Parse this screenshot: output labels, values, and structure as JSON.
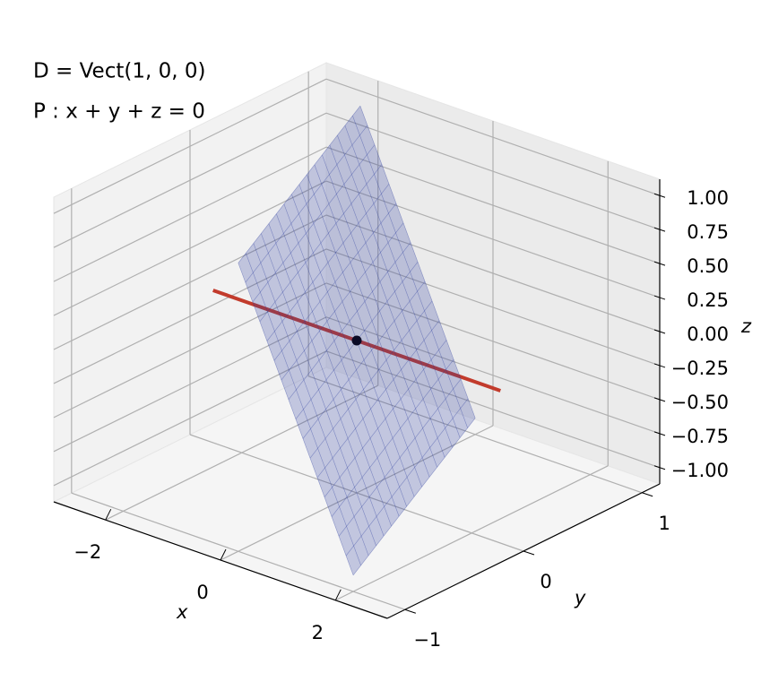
{
  "chart_data": {
    "type": "3d",
    "series": [
      {
        "name": "D = Vect(1, 0, 0)",
        "type": "line",
        "color": "#c23b2c",
        "x": [
          -2.5,
          2.5
        ],
        "y": [
          0,
          0
        ],
        "z": [
          0,
          0
        ]
      },
      {
        "name": "P : x + y + z = 0",
        "type": "surface",
        "color": "#2b3c9e",
        "x": [
          -2,
          0,
          2,
          0
        ],
        "y": [
          1,
          -1,
          -1,
          1
        ],
        "z": [
          1,
          1,
          -1,
          -1
        ]
      }
    ],
    "points": {
      "x": [
        0
      ],
      "y": [
        0
      ],
      "z": [
        0
      ],
      "color": "#0b0b26"
    },
    "xlabel": "x",
    "ylabel": "y",
    "zlabel": "z",
    "xlim": [
      -2.9,
      2.9
    ],
    "ylim": [
      -1.15,
      1.15
    ],
    "zlim": [
      -1.12,
      1.12
    ],
    "xticks": [
      {
        "value": -2,
        "label": "−2"
      },
      0,
      2
    ],
    "yticks": [
      {
        "value": -1,
        "label": "−1"
      },
      0,
      1
    ],
    "zticks": [
      {
        "value": -1,
        "label": "−1.00"
      },
      {
        "value": -0.75,
        "label": "−0.75"
      },
      {
        "value": -0.5,
        "label": "−0.50"
      },
      {
        "value": -0.25,
        "label": "−0.25"
      },
      {
        "value": 0,
        "label": "0.00"
      },
      {
        "value": 0.25,
        "label": "0.25"
      },
      {
        "value": 0.5,
        "label": "0.50"
      },
      {
        "value": 0.75,
        "label": "0.75"
      },
      {
        "value": 1,
        "label": "1.00"
      }
    ],
    "grid": true
  }
}
